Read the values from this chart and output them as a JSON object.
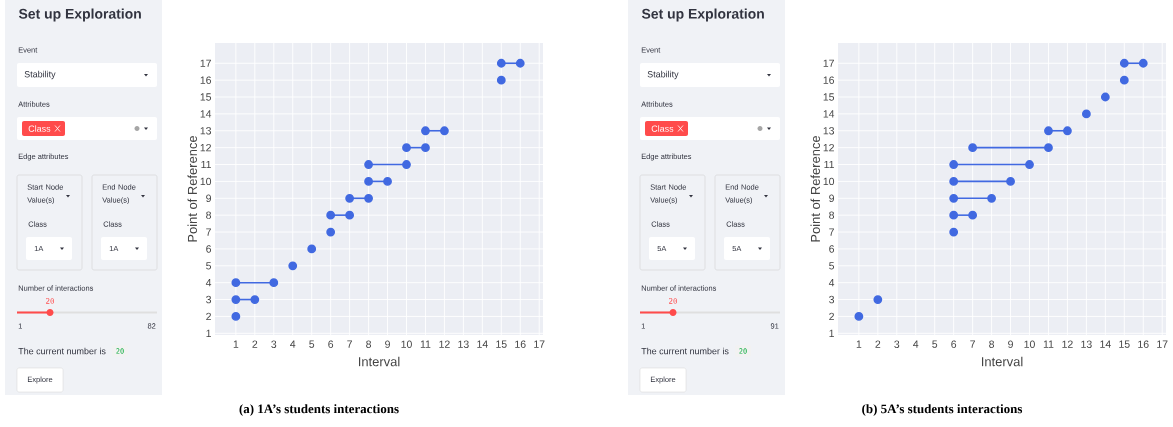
{
  "chart_data": [
    {
      "type": "other",
      "title": "Set up Exploration",
      "annotations": [
        "Event",
        "Stability",
        "Attributes",
        "Class",
        "Edge attributes",
        "Start Node Value(s)",
        "Class",
        "1A",
        "End Node Value(s)",
        "Class",
        "1A",
        "Number of interactions",
        "20",
        "1",
        "82",
        "The current number is",
        "20",
        "Explore"
      ]
    },
    {
      "type": "line",
      "xlabel": "Interval",
      "ylabel": "Point of Reference",
      "annotations": [
        "(a) 1A’s students interactions"
      ],
      "color": "#4169e1",
      "marker": "circle",
      "line_style": "solid",
      "grid": true,
      "xlim": [
        -0.1,
        17.2
      ],
      "ylim": [
        0.9,
        18.2
      ],
      "xticks": [
        1,
        2,
        3,
        4,
        5,
        6,
        7,
        8,
        9,
        10,
        11,
        12,
        13,
        14,
        15,
        16,
        17
      ],
      "yticks": [
        1,
        2,
        3,
        4,
        5,
        6,
        7,
        8,
        9,
        10,
        11,
        12,
        13,
        14,
        15,
        16,
        17
      ],
      "series": [
        {
          "x": [
            1
          ],
          "values": [
            2
          ]
        },
        {
          "x": [
            1,
            2
          ],
          "values": [
            3,
            3
          ]
        },
        {
          "x": [
            1,
            3
          ],
          "values": [
            4,
            4
          ]
        },
        {
          "x": [
            4
          ],
          "values": [
            5
          ]
        },
        {
          "x": [
            5
          ],
          "values": [
            6
          ]
        },
        {
          "x": [
            6
          ],
          "values": [
            7
          ]
        },
        {
          "x": [
            6,
            7
          ],
          "values": [
            8,
            8
          ]
        },
        {
          "x": [
            7,
            8
          ],
          "values": [
            9,
            9
          ]
        },
        {
          "x": [
            8,
            9
          ],
          "values": [
            10,
            10
          ]
        },
        {
          "x": [
            8,
            10
          ],
          "values": [
            11,
            11
          ]
        },
        {
          "x": [
            10,
            11
          ],
          "values": [
            12,
            12
          ]
        },
        {
          "x": [
            11,
            12
          ],
          "values": [
            13,
            13
          ]
        },
        {
          "x": [
            15
          ],
          "values": [
            16
          ]
        },
        {
          "x": [
            15,
            16
          ],
          "values": [
            17,
            17
          ]
        }
      ]
    },
    {
      "type": "other",
      "title": "Set up Exploration",
      "annotations": [
        "Event",
        "Stability",
        "Attributes",
        "Class",
        "Edge attributes",
        "Start Node Value(s)",
        "Class",
        "5A",
        "End Node Value(s)",
        "Class",
        "5A",
        "Number of interactions",
        "20",
        "1",
        "91",
        "The current number is",
        "20",
        "Explore"
      ]
    },
    {
      "type": "line",
      "xlabel": "Interval",
      "ylabel": "Point of Reference",
      "annotations": [
        "(b) 5A’s students interactions"
      ],
      "color": "#4169e1",
      "marker": "circle",
      "line_style": "solid",
      "grid": true,
      "xlim": [
        -0.1,
        17.2
      ],
      "ylim": [
        0.9,
        18.2
      ],
      "xticks": [
        1,
        2,
        3,
        4,
        5,
        6,
        7,
        8,
        9,
        10,
        11,
        12,
        13,
        14,
        15,
        16,
        17
      ],
      "yticks": [
        1,
        2,
        3,
        4,
        5,
        6,
        7,
        8,
        9,
        10,
        11,
        12,
        13,
        14,
        15,
        16,
        17
      ],
      "series": [
        {
          "x": [
            1
          ],
          "values": [
            2
          ]
        },
        {
          "x": [
            2
          ],
          "values": [
            3
          ]
        },
        {
          "x": [
            6
          ],
          "values": [
            7
          ]
        },
        {
          "x": [
            6,
            7
          ],
          "values": [
            8,
            8
          ]
        },
        {
          "x": [
            6,
            8
          ],
          "values": [
            9,
            9
          ]
        },
        {
          "x": [
            6,
            9
          ],
          "values": [
            10,
            10
          ]
        },
        {
          "x": [
            6,
            10
          ],
          "values": [
            11,
            11
          ]
        },
        {
          "x": [
            7,
            11
          ],
          "values": [
            12,
            12
          ]
        },
        {
          "x": [
            11,
            12
          ],
          "values": [
            13,
            13
          ]
        },
        {
          "x": [
            13
          ],
          "values": [
            14
          ]
        },
        {
          "x": [
            14
          ],
          "values": [
            15
          ]
        },
        {
          "x": [
            15
          ],
          "values": [
            16
          ]
        },
        {
          "x": [
            15,
            16
          ],
          "values": [
            17,
            17
          ]
        }
      ]
    }
  ]
}
